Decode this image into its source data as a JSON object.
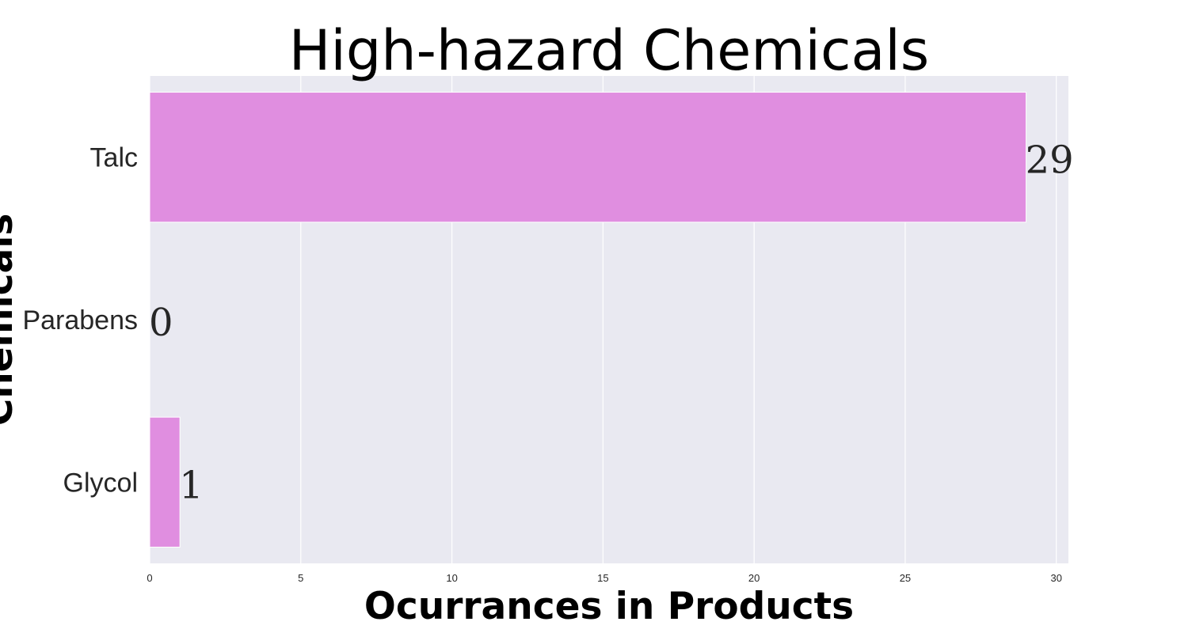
{
  "chart_data": {
    "type": "bar",
    "orientation": "horizontal",
    "title": "High-hazard Chemicals",
    "xlabel": "Ocurrances in Products",
    "ylabel": "Chemicals",
    "categories": [
      "Talc",
      "Parabens",
      "Glycol"
    ],
    "values": [
      29,
      0,
      1
    ],
    "data_labels": [
      "29",
      "0",
      "1"
    ],
    "xlim": [
      0,
      30.4
    ],
    "xticks": [
      0,
      5,
      10,
      15,
      20,
      25,
      30
    ],
    "xtick_labels": [
      "0",
      "5",
      "10",
      "15",
      "20",
      "25",
      "30"
    ],
    "grid": true,
    "bar_color": "#e08ee0",
    "plot_background": "#e9e9f1",
    "grid_color": "#ffffff"
  }
}
